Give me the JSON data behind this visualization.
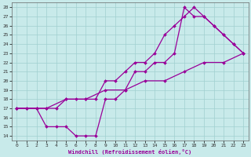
{
  "xlabel": "Windchill (Refroidissement éolien,°C)",
  "xlim": [
    -0.5,
    23.5
  ],
  "ylim": [
    13.5,
    28.5
  ],
  "xticks": [
    0,
    1,
    2,
    3,
    4,
    5,
    6,
    7,
    8,
    9,
    10,
    11,
    12,
    13,
    14,
    15,
    16,
    17,
    18,
    19,
    20,
    21,
    22,
    23
  ],
  "yticks": [
    14,
    15,
    16,
    17,
    18,
    19,
    20,
    21,
    22,
    23,
    24,
    25,
    26,
    27,
    28
  ],
  "bg_color": "#c8eaea",
  "grid_color": "#a0d0d0",
  "line_color": "#990099",
  "line1_x": [
    0,
    1,
    2,
    3,
    4,
    5,
    6,
    7,
    8,
    9,
    10,
    11,
    12,
    13,
    14,
    15,
    16,
    17,
    18,
    19,
    20,
    21,
    22,
    23
  ],
  "line1_y": [
    17,
    17,
    17,
    17,
    17,
    18,
    18,
    18,
    18,
    20,
    20,
    21,
    22,
    22,
    23,
    25,
    26,
    27,
    28,
    27,
    26,
    25,
    24,
    23
  ],
  "line2_x": [
    0,
    2,
    3,
    5,
    7,
    9,
    11,
    13,
    15,
    17,
    19,
    21,
    23
  ],
  "line2_y": [
    17,
    17,
    17,
    18,
    18,
    19,
    19,
    20,
    20,
    21,
    22,
    22,
    23
  ],
  "line3_x": [
    0,
    1,
    2,
    3,
    4,
    5,
    6,
    7,
    8,
    9,
    10,
    11,
    12,
    13,
    14,
    15,
    16,
    17,
    18,
    19,
    20,
    21,
    22,
    23
  ],
  "line3_y": [
    17,
    17,
    17,
    15,
    15,
    15,
    14,
    14,
    14,
    18,
    18,
    19,
    21,
    21,
    22,
    22,
    23,
    28,
    27,
    27,
    26,
    25,
    24,
    23
  ]
}
